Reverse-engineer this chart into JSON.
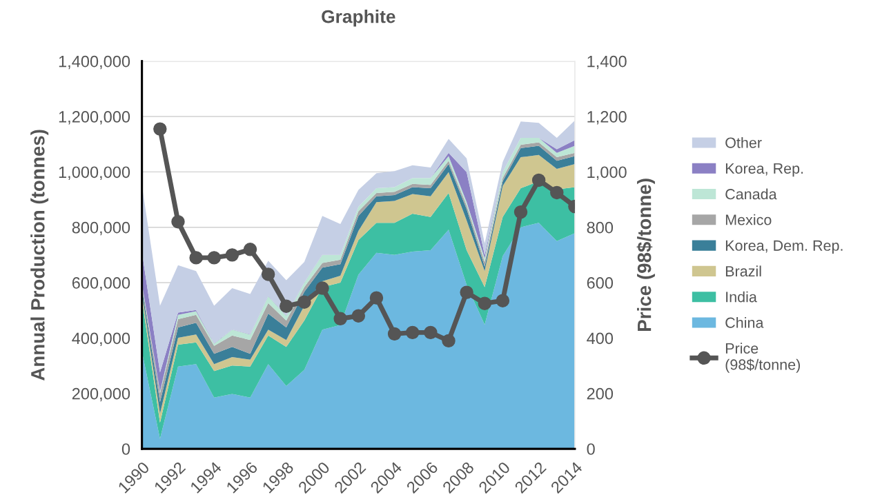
{
  "chart_data": {
    "type": "area",
    "title": "Graphite",
    "xlabel": null,
    "ylabel": "Annual Production (tonnes)",
    "y2label": "Price (98$/tonne)",
    "x": [
      1990,
      1991,
      1992,
      1993,
      1994,
      1995,
      1996,
      1997,
      1998,
      1999,
      2000,
      2001,
      2002,
      2003,
      2004,
      2005,
      2006,
      2007,
      2008,
      2009,
      2010,
      2011,
      2012,
      2013,
      2014
    ],
    "stacked": true,
    "series": [
      {
        "name": "China",
        "color": "#6cb8e0",
        "values": [
          350000,
          36000,
          297000,
          306000,
          185000,
          198000,
          185000,
          306000,
          227000,
          285000,
          430000,
          447000,
          629000,
          708000,
          700000,
          712000,
          717000,
          791000,
          592000,
          448000,
          696000,
          800000,
          816000,
          750000,
          779000
        ]
      },
      {
        "name": "India",
        "color": "#3dbfa3",
        "values": [
          190000,
          58000,
          79000,
          78000,
          96000,
          103000,
          112000,
          103000,
          141000,
          178000,
          154000,
          153000,
          125000,
          108000,
          116000,
          137000,
          120000,
          133000,
          125000,
          136000,
          141000,
          141000,
          150000,
          187000,
          166000
        ]
      },
      {
        "name": "Brazil",
        "color": "#cfc690",
        "values": [
          20000,
          33000,
          25000,
          29000,
          25000,
          30000,
          25000,
          21000,
          25000,
          54000,
          21000,
          25000,
          33000,
          75000,
          79000,
          71000,
          75000,
          75000,
          108000,
          58000,
          112000,
          112000,
          95000,
          74000,
          83000
        ]
      },
      {
        "name": "Korea, Dem. Rep.",
        "color": "#3a7f99",
        "values": [
          20000,
          42000,
          37000,
          42000,
          37000,
          37000,
          21000,
          58000,
          45000,
          50000,
          49000,
          42000,
          54000,
          21000,
          21000,
          25000,
          29000,
          29000,
          41000,
          16000,
          17000,
          33000,
          33000,
          29000,
          29000
        ]
      },
      {
        "name": "Mexico",
        "color": "#a6a6a6",
        "values": [
          10000,
          32000,
          30000,
          29000,
          29000,
          41000,
          50000,
          38000,
          25000,
          17000,
          17000,
          16000,
          17000,
          12000,
          12000,
          12000,
          12000,
          12000,
          13000,
          17000,
          12000,
          12000,
          13000,
          13000,
          12000
        ]
      },
      {
        "name": "Canada",
        "color": "#bde6d6",
        "values": [
          5000,
          6000,
          16000,
          13000,
          8000,
          21000,
          20000,
          25000,
          17000,
          16000,
          29000,
          17000,
          16000,
          17000,
          17000,
          21000,
          25000,
          17000,
          12000,
          13000,
          21000,
          25000,
          16000,
          16000,
          25000
        ]
      },
      {
        "name": "Korea, Rep.",
        "color": "#8b80c4",
        "values": [
          115000,
          69000,
          8000,
          4000,
          1000,
          1000,
          1000,
          1000,
          1000,
          1000,
          1000,
          1000,
          0,
          0,
          0,
          0,
          0,
          12000,
          108000,
          12000,
          0,
          0,
          0,
          13000,
          21000
        ]
      },
      {
        "name": "Other",
        "color": "#c5cfe5",
        "values": [
          240000,
          241000,
          171000,
          141000,
          136000,
          149000,
          145000,
          127000,
          128000,
          74000,
          140000,
          111000,
          61000,
          54000,
          58000,
          46000,
          38000,
          50000,
          50000,
          42000,
          37000,
          59000,
          54000,
          41000,
          71000
        ]
      },
      {
        "name": "Price\n(98$/tonne)",
        "type": "line",
        "axis": "y2",
        "marker": "circle",
        "line_style": "solid",
        "color": "#555555",
        "values": [
          null,
          1155,
          820,
          690,
          690,
          700,
          720,
          630,
          515,
          530,
          580,
          470,
          480,
          545,
          415,
          420,
          420,
          390,
          565,
          525,
          535,
          855,
          970,
          925,
          875
        ]
      }
    ],
    "xlim": [
      1990,
      2014
    ],
    "xticks": [
      1990,
      1992,
      1994,
      1996,
      1998,
      2000,
      2002,
      2004,
      2006,
      2008,
      2010,
      2012,
      2014
    ],
    "ylim": [
      0,
      1400000
    ],
    "yticks": [
      0,
      {
        "value": 200000,
        "label": "200,000"
      },
      {
        "value": 400000,
        "label": "400,000"
      },
      {
        "value": 600000,
        "label": "600,000"
      },
      {
        "value": 800000,
        "label": "800,000"
      },
      {
        "value": 1000000,
        "label": "1,000,000"
      },
      {
        "value": 1200000,
        "label": "1,200,000"
      },
      {
        "value": 1400000,
        "label": "1,400,000"
      }
    ],
    "y2lim": [
      0,
      1400
    ],
    "y2ticks": [
      0,
      200,
      400,
      600,
      800,
      {
        "value": 1000,
        "label": "1,000"
      },
      {
        "value": 1200,
        "label": "1,200"
      },
      {
        "value": 1400,
        "label": "1,400"
      }
    ],
    "grid": "y",
    "legend": "right"
  }
}
